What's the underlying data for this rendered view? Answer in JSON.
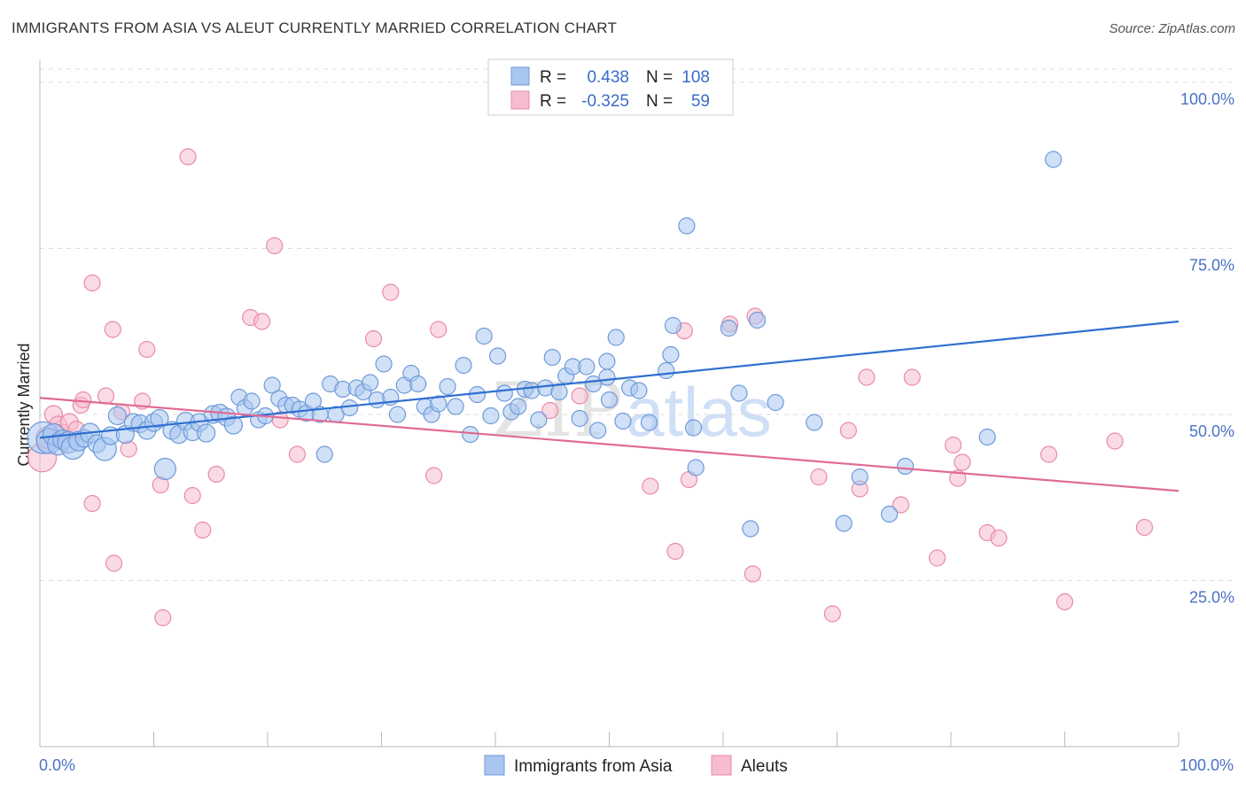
{
  "header": {
    "title": "IMMIGRANTS FROM ASIA VS ALEUT CURRENTLY MARRIED CORRELATION CHART",
    "source": "Source: ZipAtlas.com"
  },
  "watermark": {
    "zip": "ZIP",
    "atlas": "atlas"
  },
  "legend": {
    "rows": [
      {
        "r_label": "R =",
        "r_value": "0.438",
        "n_label": "N =",
        "n_value": "108"
      },
      {
        "r_label": "R =",
        "r_value": "-0.325",
        "n_label": "N =",
        "n_value": "59"
      }
    ]
  },
  "bottom_legend": {
    "asia": "Immigrants from Asia",
    "aleut": "Aleuts"
  },
  "colors": {
    "asia_fill": "#a8c6f0",
    "asia_stroke": "#6f9ad8",
    "asia_line": "#2f6fd0",
    "aleut_fill": "#f6bcd0",
    "aleut_stroke": "#e98aa8",
    "aleut_line": "#e06a93",
    "grid": "#dddddd",
    "tick_label": "#4a72c4"
  },
  "chart_data": {
    "type": "scatter",
    "title": "IMMIGRANTS FROM ASIA VS ALEUT CURRENTLY MARRIED CORRELATION CHART",
    "xlabel": "",
    "ylabel": "Currently Married",
    "xlim": [
      0,
      100
    ],
    "ylim": [
      0,
      102
    ],
    "x_tick_labels": [
      "0.0%",
      "100.0%"
    ],
    "y_ticks": [
      {
        "value": 25,
        "label": "25.0%"
      },
      {
        "value": 50,
        "label": "50.0%"
      },
      {
        "value": 75,
        "label": "75.0%"
      },
      {
        "value": 100,
        "label": "100.0%"
      }
    ],
    "grid": true,
    "series": [
      {
        "name": "Immigrants from Asia",
        "r": 0.438,
        "n": 108,
        "trend": {
          "x": [
            0,
            100
          ],
          "y": [
            46.5,
            64.0
          ]
        },
        "points": [
          [
            0.3,
            46.5,
            18
          ],
          [
            0.8,
            46.0,
            14
          ],
          [
            1.2,
            47.0,
            12
          ],
          [
            1.6,
            45.5,
            12
          ],
          [
            2.0,
            46.2,
            11
          ],
          [
            2.5,
            45.8,
            12
          ],
          [
            2.9,
            45.0,
            13
          ],
          [
            3.4,
            46.0,
            11
          ],
          [
            3.9,
            46.4,
            10
          ],
          [
            4.4,
            47.2,
            11
          ],
          [
            5.0,
            45.6,
            10
          ],
          [
            5.7,
            44.8,
            13
          ],
          [
            6.2,
            46.8,
            10
          ],
          [
            6.8,
            49.8,
            10
          ],
          [
            7.5,
            47.0,
            10
          ],
          [
            8.2,
            48.8,
            10
          ],
          [
            8.8,
            48.6,
            10
          ],
          [
            9.4,
            47.6,
            10
          ],
          [
            10.0,
            48.8,
            10
          ],
          [
            10.5,
            49.4,
            10
          ],
          [
            11.0,
            41.8,
            12
          ],
          [
            11.6,
            47.6,
            10
          ],
          [
            12.2,
            47.0,
            10
          ],
          [
            12.8,
            49.0,
            10
          ],
          [
            13.4,
            47.4,
            10
          ],
          [
            14.0,
            48.8,
            10
          ],
          [
            14.6,
            47.2,
            10
          ],
          [
            15.2,
            50.0,
            10
          ],
          [
            15.8,
            50.2,
            10
          ],
          [
            16.4,
            49.6,
            10
          ],
          [
            17.0,
            48.4,
            10
          ],
          [
            17.5,
            52.6,
            9
          ],
          [
            18.0,
            51.0,
            9
          ],
          [
            18.6,
            52.0,
            9
          ],
          [
            19.2,
            49.2,
            9
          ],
          [
            19.8,
            49.8,
            9
          ],
          [
            20.4,
            54.4,
            9
          ],
          [
            21.0,
            52.4,
            9
          ],
          [
            21.6,
            51.4,
            9
          ],
          [
            22.2,
            51.4,
            9
          ],
          [
            22.8,
            50.8,
            9
          ],
          [
            23.4,
            50.2,
            9
          ],
          [
            24.0,
            52.0,
            9
          ],
          [
            24.6,
            50.0,
            9
          ],
          [
            25.0,
            44.0,
            9
          ],
          [
            25.5,
            54.6,
            9
          ],
          [
            26.0,
            50.0,
            9
          ],
          [
            26.6,
            53.8,
            9
          ],
          [
            27.2,
            51.0,
            9
          ],
          [
            27.8,
            54.0,
            9
          ],
          [
            28.4,
            53.4,
            9
          ],
          [
            29.0,
            54.8,
            9
          ],
          [
            29.6,
            52.2,
            9
          ],
          [
            30.2,
            57.6,
            9
          ],
          [
            30.8,
            52.6,
            9
          ],
          [
            31.4,
            50.0,
            9
          ],
          [
            32.0,
            54.4,
            9
          ],
          [
            32.6,
            56.2,
            9
          ],
          [
            33.2,
            54.6,
            9
          ],
          [
            33.8,
            51.2,
            9
          ],
          [
            34.4,
            50.0,
            9
          ],
          [
            35.0,
            51.6,
            9
          ],
          [
            35.8,
            54.2,
            9
          ],
          [
            36.5,
            51.2,
            9
          ],
          [
            37.2,
            57.4,
            9
          ],
          [
            37.8,
            47.0,
            9
          ],
          [
            38.4,
            53.0,
            9
          ],
          [
            39.0,
            61.8,
            9
          ],
          [
            39.6,
            49.8,
            9
          ],
          [
            40.2,
            58.8,
            9
          ],
          [
            40.8,
            53.2,
            9
          ],
          [
            41.4,
            50.4,
            9
          ],
          [
            42.0,
            51.2,
            9
          ],
          [
            42.6,
            53.8,
            9
          ],
          [
            43.2,
            53.6,
            9
          ],
          [
            43.8,
            49.2,
            9
          ],
          [
            44.4,
            54.0,
            9
          ],
          [
            45.0,
            58.6,
            9
          ],
          [
            45.6,
            53.4,
            9
          ],
          [
            46.2,
            55.8,
            9
          ],
          [
            46.8,
            57.2,
            9
          ],
          [
            47.4,
            49.4,
            9
          ],
          [
            48.0,
            57.2,
            9
          ],
          [
            48.6,
            54.6,
            9
          ],
          [
            49.0,
            47.6,
            9
          ],
          [
            49.8,
            55.6,
            9
          ],
          [
            49.8,
            58.0,
            9
          ],
          [
            50.0,
            52.2,
            9
          ],
          [
            50.6,
            61.6,
            9
          ],
          [
            51.2,
            49.0,
            9
          ],
          [
            51.8,
            54.0,
            9
          ],
          [
            52.6,
            53.6,
            9
          ],
          [
            53.5,
            48.8,
            9
          ],
          [
            55.6,
            63.4,
            9
          ],
          [
            55.0,
            56.6,
            9
          ],
          [
            55.4,
            59.0,
            9
          ],
          [
            57.4,
            48.0,
            9
          ],
          [
            57.6,
            42.0,
            9
          ],
          [
            56.8,
            78.4,
            9
          ],
          [
            60.5,
            63.0,
            9
          ],
          [
            61.4,
            53.2,
            9
          ],
          [
            62.4,
            32.8,
            9
          ],
          [
            63.0,
            64.2,
            9
          ],
          [
            64.6,
            51.8,
            9
          ],
          [
            68.0,
            48.8,
            9
          ],
          [
            70.6,
            33.6,
            9
          ],
          [
            72.0,
            40.6,
            9
          ],
          [
            74.6,
            35.0,
            9
          ],
          [
            76.0,
            42.2,
            9
          ],
          [
            83.2,
            46.6,
            9
          ],
          [
            89.0,
            88.4,
            9
          ]
        ]
      },
      {
        "name": "Aleuts",
        "r": -0.325,
        "n": 59,
        "trend": {
          "x": [
            0,
            100
          ],
          "y": [
            52.5,
            38.5
          ]
        },
        "points": [
          [
            0.2,
            43.5,
            16
          ],
          [
            0.6,
            46.5,
            12
          ],
          [
            1.2,
            50.0,
            10
          ],
          [
            1.6,
            48.4,
            10
          ],
          [
            2.0,
            47.2,
            10
          ],
          [
            2.6,
            48.8,
            10
          ],
          [
            3.2,
            47.8,
            9
          ],
          [
            3.6,
            51.4,
            9
          ],
          [
            3.8,
            52.2,
            9
          ],
          [
            4.6,
            36.6,
            9
          ],
          [
            4.6,
            69.8,
            9
          ],
          [
            5.8,
            52.8,
            9
          ],
          [
            6.4,
            62.8,
            9
          ],
          [
            6.5,
            27.6,
            9
          ],
          [
            7.2,
            50.4,
            9
          ],
          [
            7.8,
            44.8,
            9
          ],
          [
            9.0,
            52.0,
            9
          ],
          [
            9.4,
            59.8,
            9
          ],
          [
            10.6,
            39.4,
            9
          ],
          [
            10.8,
            19.4,
            9
          ],
          [
            13.0,
            88.8,
            9
          ],
          [
            13.4,
            37.8,
            9
          ],
          [
            14.3,
            32.6,
            9
          ],
          [
            15.5,
            41.0,
            9
          ],
          [
            18.5,
            64.6,
            9
          ],
          [
            19.5,
            64.0,
            9
          ],
          [
            20.6,
            75.4,
            9
          ],
          [
            21.1,
            49.2,
            9
          ],
          [
            22.6,
            44.0,
            9
          ],
          [
            29.3,
            61.4,
            9
          ],
          [
            30.8,
            68.4,
            9
          ],
          [
            34.6,
            40.8,
            9
          ],
          [
            35.0,
            62.8,
            9
          ],
          [
            44.8,
            50.6,
            9
          ],
          [
            47.4,
            52.8,
            9
          ],
          [
            53.6,
            39.2,
            9
          ],
          [
            55.8,
            29.4,
            9
          ],
          [
            56.6,
            62.6,
            9
          ],
          [
            57.0,
            40.2,
            9
          ],
          [
            60.6,
            63.6,
            9
          ],
          [
            62.6,
            26.0,
            9
          ],
          [
            62.8,
            64.8,
            9
          ],
          [
            68.4,
            40.6,
            9
          ],
          [
            69.6,
            20.0,
            9
          ],
          [
            71.0,
            47.6,
            9
          ],
          [
            72.0,
            38.8,
            9
          ],
          [
            72.6,
            55.6,
            9
          ],
          [
            75.6,
            36.4,
            9
          ],
          [
            76.6,
            55.6,
            9
          ],
          [
            78.8,
            28.4,
            9
          ],
          [
            80.2,
            45.4,
            9
          ],
          [
            80.6,
            40.4,
            9
          ],
          [
            81.0,
            42.8,
            9
          ],
          [
            83.2,
            32.2,
            9
          ],
          [
            84.2,
            31.4,
            9
          ],
          [
            88.6,
            44.0,
            9
          ],
          [
            90.0,
            21.8,
            9
          ],
          [
            94.4,
            46.0,
            9
          ],
          [
            97.0,
            33.0,
            9
          ]
        ]
      }
    ]
  }
}
